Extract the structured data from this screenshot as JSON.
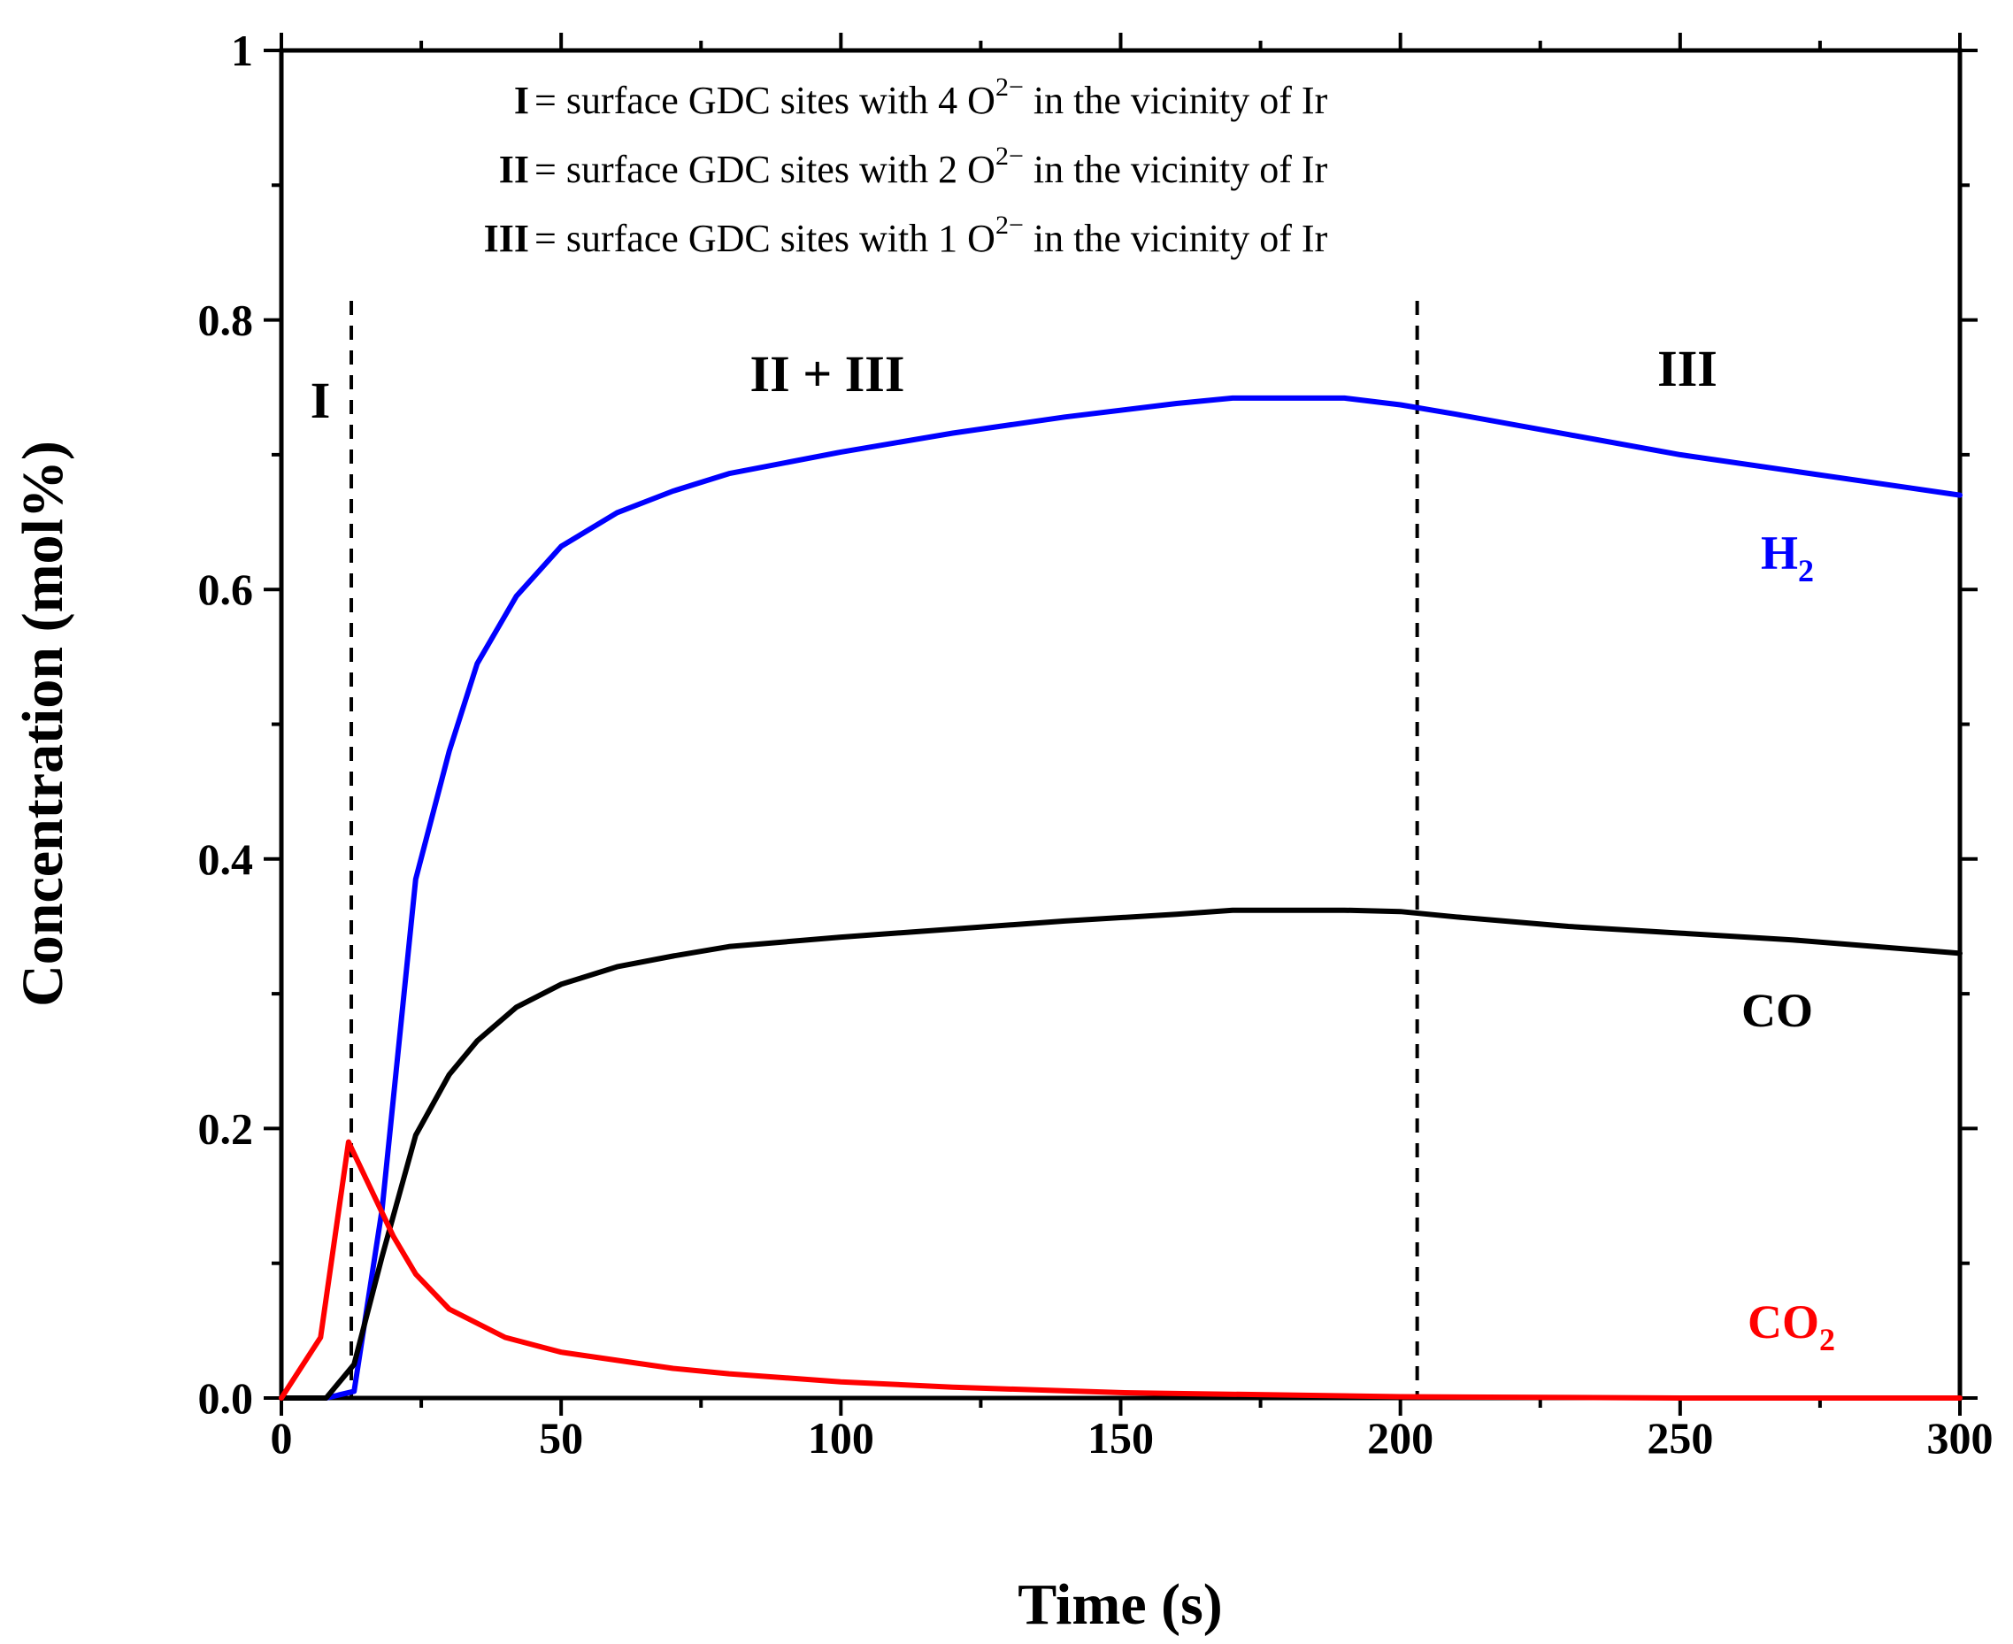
{
  "chart_data": {
    "type": "line",
    "title": "",
    "xlabel": "Time (s)",
    "ylabel": "Concentration (mol%)",
    "xlim": [
      0,
      300
    ],
    "ylim": [
      0,
      1
    ],
    "x_ticks": [
      "0",
      "50",
      "100",
      "150",
      "200",
      "250",
      "300"
    ],
    "y_ticks": [
      "0.0",
      "0.2",
      "0.4",
      "0.6",
      "0.8",
      "1"
    ],
    "grid": false,
    "series": [
      {
        "name": "H",
        "sub": "2",
        "color": "#0000ff",
        "x": [
          0,
          8,
          13,
          18,
          24,
          30,
          35,
          42,
          50,
          60,
          70,
          80,
          100,
          120,
          140,
          160,
          170,
          190,
          200,
          210,
          230,
          250,
          270,
          300
        ],
        "y": [
          0,
          0,
          0.005,
          0.14,
          0.385,
          0.48,
          0.545,
          0.595,
          0.632,
          0.657,
          0.673,
          0.686,
          0.702,
          0.716,
          0.728,
          0.738,
          0.742,
          0.742,
          0.737,
          0.73,
          0.715,
          0.7,
          0.688,
          0.67
        ]
      },
      {
        "name": "CO",
        "sub": "",
        "color": "#000000",
        "x": [
          0,
          8,
          13,
          18,
          24,
          30,
          35,
          42,
          50,
          60,
          70,
          80,
          100,
          120,
          140,
          160,
          170,
          190,
          200,
          210,
          230,
          250,
          270,
          300
        ],
        "y": [
          0,
          0,
          0.025,
          0.105,
          0.195,
          0.24,
          0.265,
          0.29,
          0.307,
          0.32,
          0.328,
          0.335,
          0.342,
          0.348,
          0.354,
          0.359,
          0.362,
          0.362,
          0.361,
          0.357,
          0.35,
          0.345,
          0.34,
          0.33
        ]
      },
      {
        "name": "CO",
        "sub": "2",
        "color": "#ff0000",
        "x": [
          0,
          7,
          12,
          16,
          20,
          24,
          30,
          40,
          50,
          60,
          70,
          80,
          100,
          120,
          150,
          200,
          250,
          300
        ],
        "y": [
          0,
          0.045,
          0.19,
          0.155,
          0.12,
          0.092,
          0.066,
          0.045,
          0.034,
          0.028,
          0.022,
          0.018,
          0.012,
          0.008,
          0.004,
          0.001,
          0.0,
          0.0
        ]
      }
    ],
    "dividers": [
      12.5,
      203
    ],
    "regions": [
      "I",
      "II + III",
      "III"
    ],
    "annotations": [
      {
        "roman": "I",
        "pre": "= surface GDC sites with 4 O",
        "sup": "2−",
        "post": " in the vicinity of Ir"
      },
      {
        "roman": "II",
        "pre": "= surface GDC sites with 2 O",
        "sup": "2−",
        "post": " in the vicinity of Ir"
      },
      {
        "roman": "III",
        "pre": "= surface GDC sites with 1 O",
        "sup": "2−",
        "post": " in the vicinity of Ir"
      }
    ]
  }
}
